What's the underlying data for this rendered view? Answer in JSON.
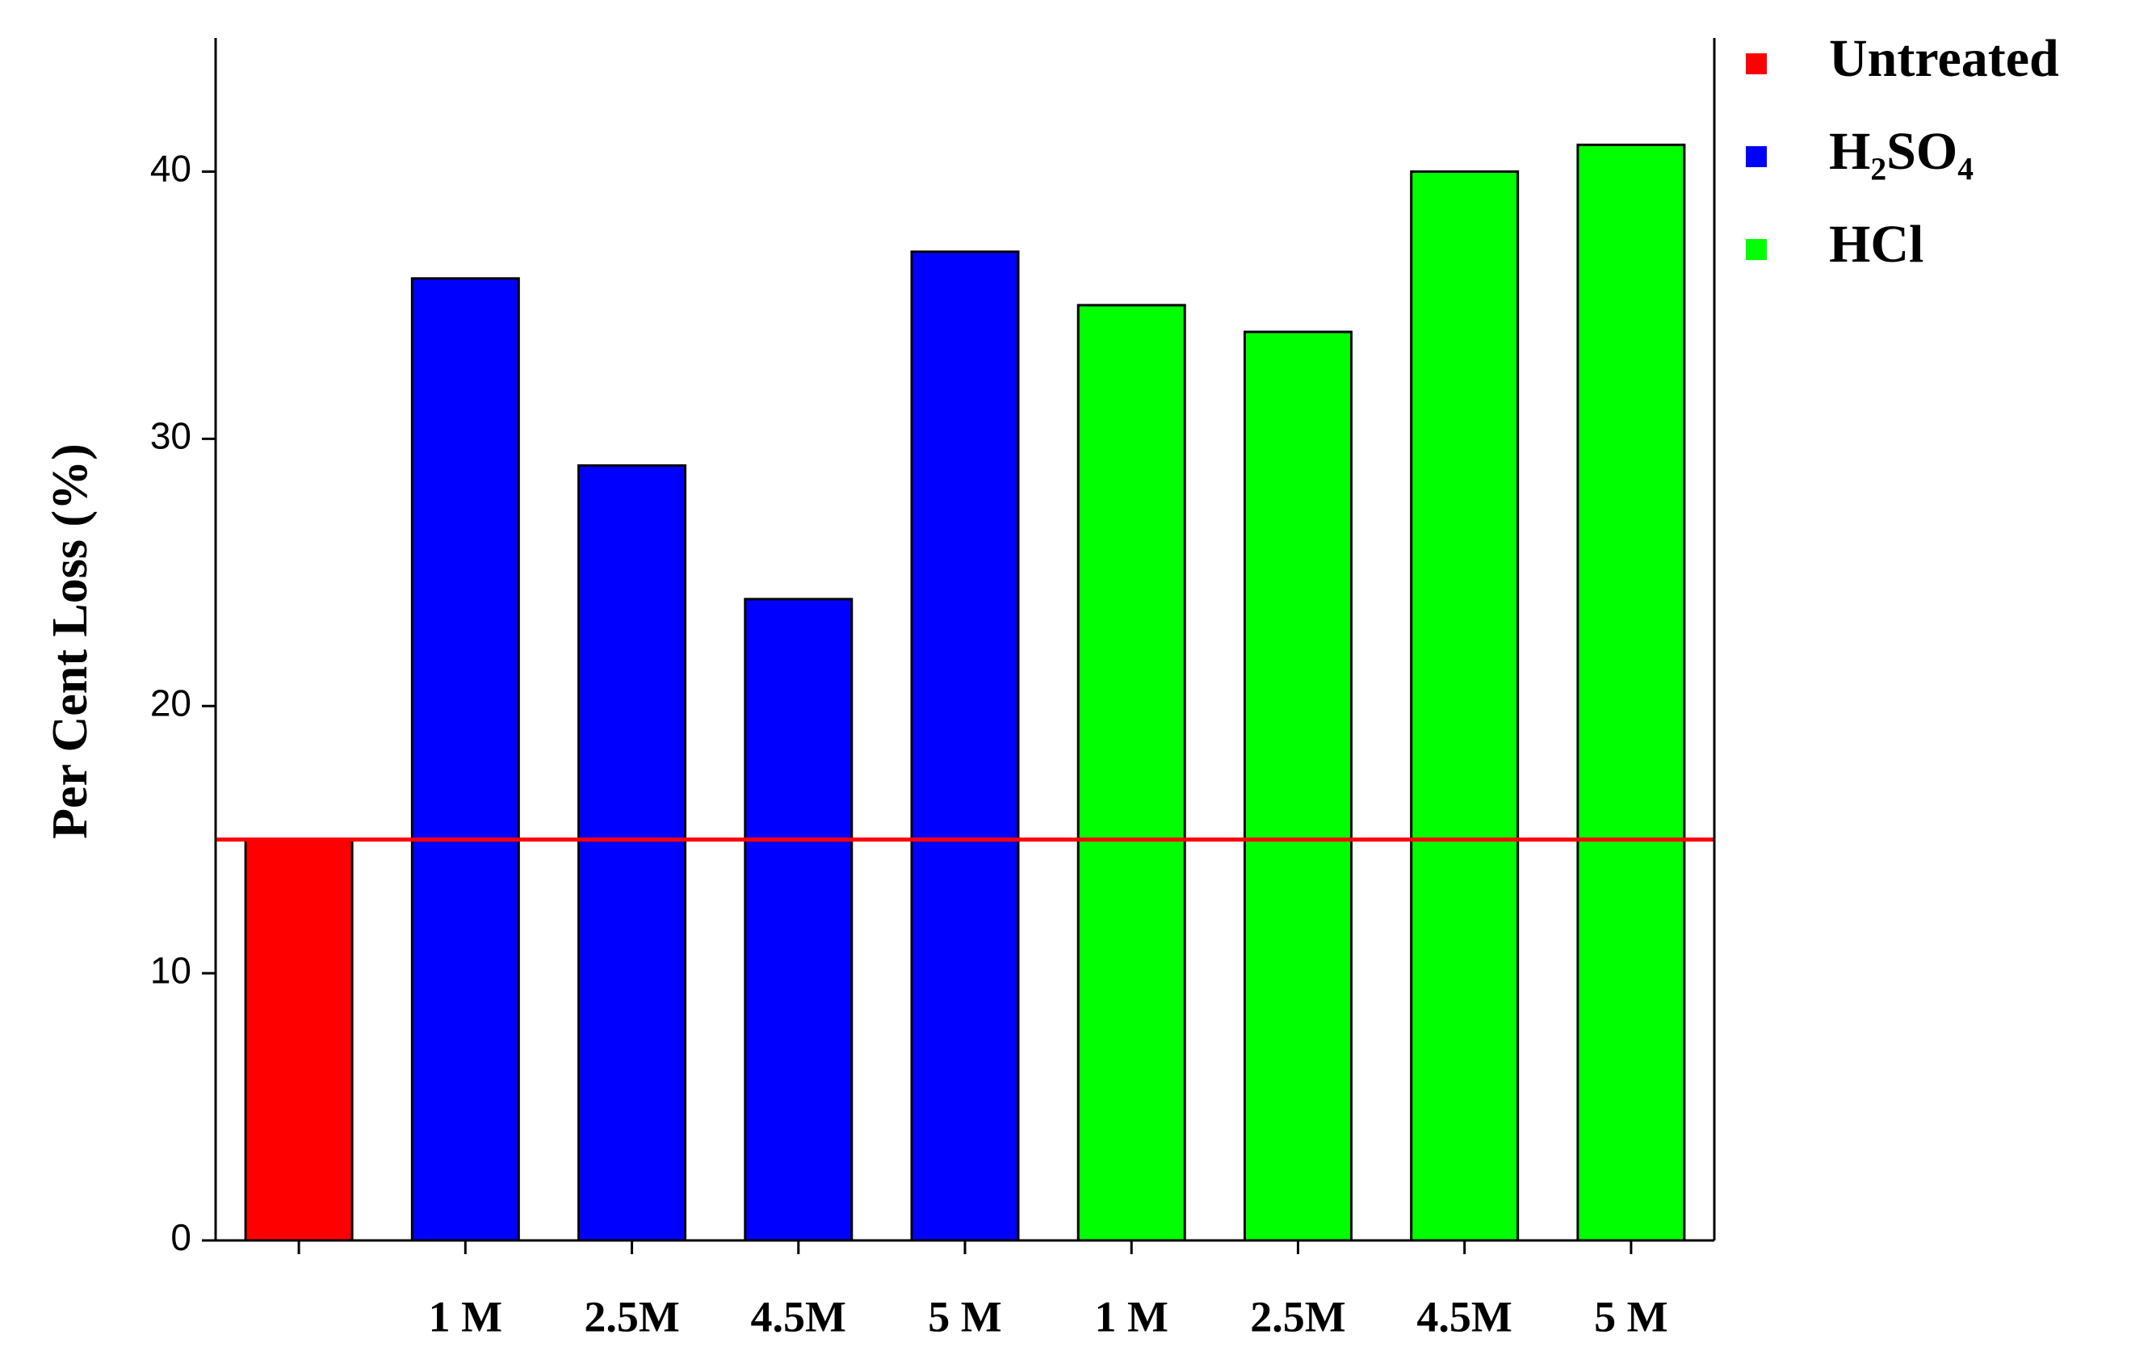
{
  "chart_data": {
    "type": "bar",
    "y_label": "Per  Cent Loss (%)",
    "categories": [
      null,
      "1 M",
      "2.5M",
      "4.5M",
      "5 M",
      "1 M",
      "2.5M",
      "4.5M",
      "5 M"
    ],
    "series": [
      {
        "name": "Untreated",
        "color": "#ff0000",
        "values": [
          15,
          null,
          null,
          null,
          null,
          null,
          null,
          null,
          null
        ]
      },
      {
        "name": "H₂SO₄",
        "color": "#0000ff",
        "values": [
          null,
          36,
          29,
          24,
          37,
          null,
          null,
          null,
          null
        ]
      },
      {
        "name": "HCl",
        "color": "#00ff00",
        "values": [
          null,
          null,
          null,
          null,
          null,
          35,
          34,
          40,
          41
        ]
      }
    ],
    "ylim": [
      0,
      45
    ],
    "yticks": [
      0,
      10,
      20,
      30,
      40
    ],
    "legend": "right"
  }
}
